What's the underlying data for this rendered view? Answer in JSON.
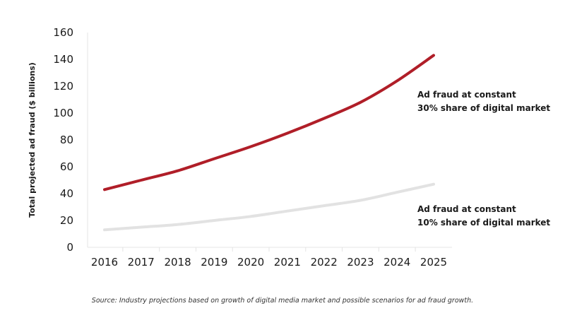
{
  "chart_data": {
    "type": "line",
    "title": "",
    "xlabel": "",
    "ylabel": "Total projected ad fraud ($ billions)",
    "x": [
      "2016",
      "2017",
      "2018",
      "2019",
      "2020",
      "2021",
      "2022",
      "2023",
      "2024",
      "2025"
    ],
    "ylim": [
      0,
      160
    ],
    "yticks": [
      0,
      20,
      40,
      60,
      80,
      100,
      120,
      140,
      160
    ],
    "grid": false,
    "series": [
      {
        "values": [
          43,
          50,
          57,
          66,
          75,
          85,
          96,
          108,
          124,
          143
        ],
        "color": "#b01e28",
        "annotation": [
          "Ad fraud at constant",
          "30% share of digital market"
        ]
      },
      {
        "values": [
          13,
          15,
          17,
          20,
          23,
          27,
          31,
          35,
          41,
          47
        ],
        "color": "#e2e2e2",
        "annotation": [
          "Ad fraud at constant",
          "10% share of digital market"
        ]
      }
    ],
    "source": "Source: Industry projections based on growth of digital media market and possible scenarios for ad fraud growth."
  }
}
